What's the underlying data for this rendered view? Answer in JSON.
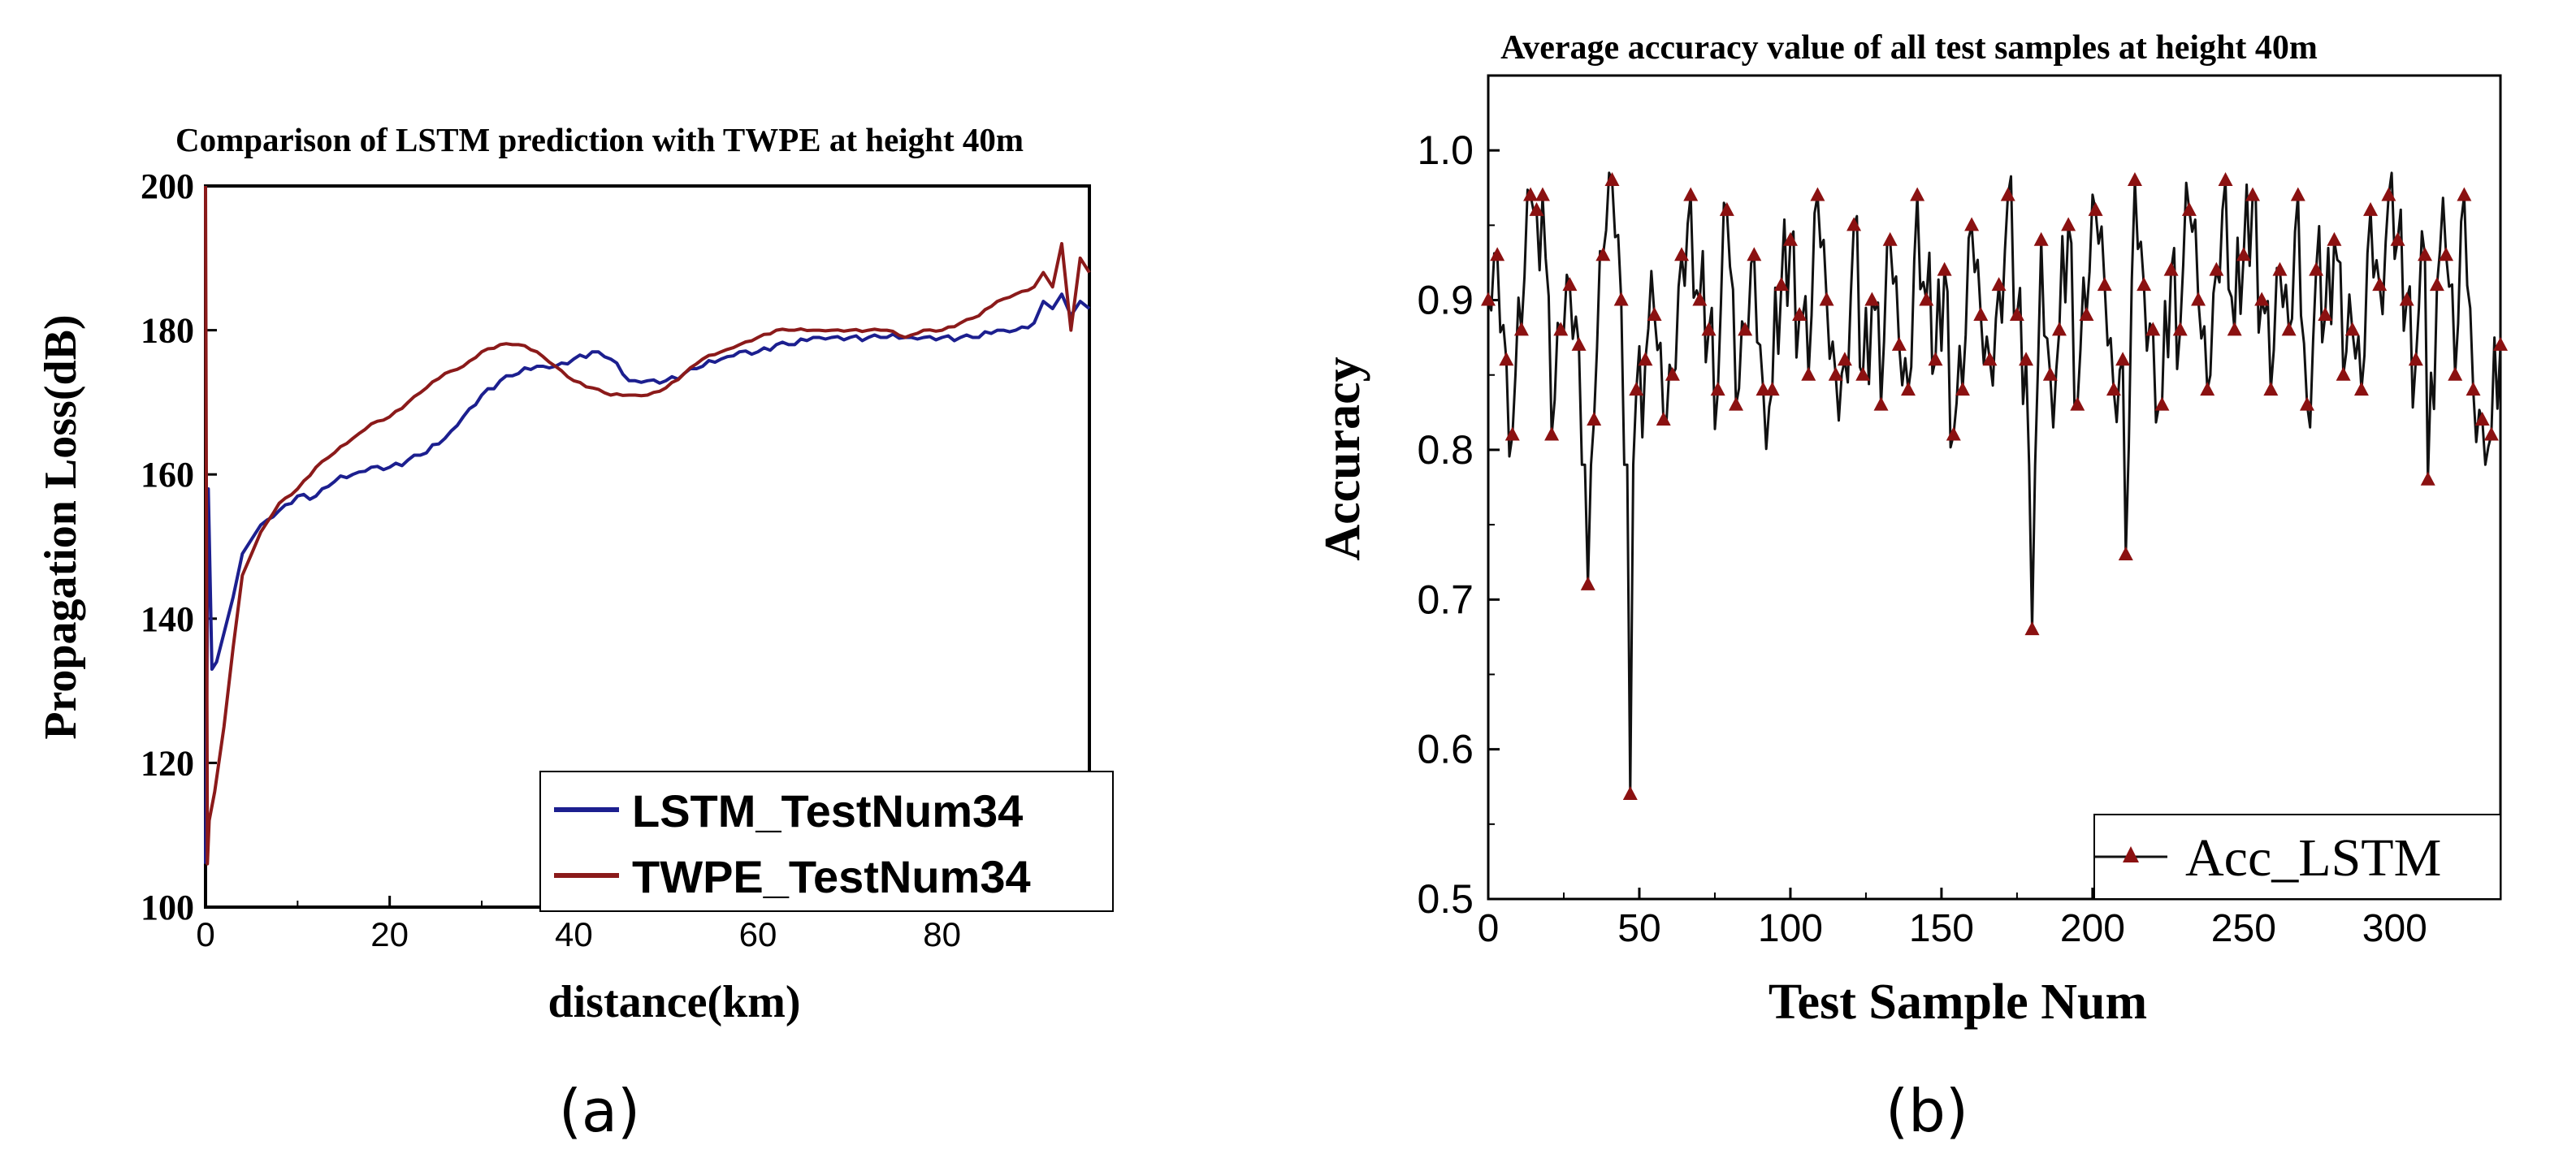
{
  "colors": {
    "lstm": "#1c1f8f",
    "twpe": "#8b1a1a",
    "acc_line": "#111111",
    "acc_marker": "#8b1111",
    "axis": "#000000"
  },
  "chart_data": [
    {
      "id": "a",
      "panel_label": "(a)",
      "type": "line",
      "title": "Comparison of LSTM prediction with TWPE at height 40m",
      "xlabel": "distance(km)",
      "ylabel": "Propagation Loss(dB)",
      "xlim": [
        0,
        96
      ],
      "ylim": [
        100,
        200
      ],
      "xticks": [
        0,
        20,
        40,
        60,
        80
      ],
      "yticks": [
        100,
        120,
        140,
        160,
        180,
        200
      ],
      "legend_position": "bottom-right",
      "series": [
        {
          "name": "LSTM_TestNum34",
          "color_key": "lstm",
          "x": [
            0,
            0.3,
            0.7,
            1.2,
            2,
            3,
            4,
            5,
            6,
            8,
            10,
            12,
            14,
            16,
            18,
            20,
            22,
            24,
            26,
            28,
            30,
            32,
            34,
            36,
            38,
            40,
            42,
            44,
            46,
            48,
            50,
            52,
            54,
            56,
            58,
            60,
            62,
            64,
            66,
            68,
            70,
            72,
            74,
            76,
            78,
            80,
            82,
            84,
            86,
            88,
            90,
            91,
            92,
            93,
            94,
            95,
            96
          ],
          "values": [
            106,
            158,
            133,
            134,
            138,
            143,
            149,
            151,
            153,
            155,
            157,
            157,
            159,
            160,
            161,
            161,
            162,
            163,
            165,
            168,
            171,
            173,
            174,
            175,
            175,
            176,
            177,
            176,
            173,
            173,
            173,
            174,
            175,
            176,
            177,
            177,
            178,
            178,
            179,
            179,
            179,
            179,
            179,
            179,
            179,
            179,
            179,
            179,
            180,
            180,
            181,
            184,
            183,
            185,
            182,
            184,
            183
          ]
        },
        {
          "name": "TWPE_TestNum34",
          "color_key": "twpe",
          "x": [
            0,
            0.2,
            0.4,
            1,
            2,
            3,
            4,
            5,
            6,
            8,
            10,
            12,
            14,
            16,
            18,
            20,
            22,
            24,
            26,
            28,
            30,
            32,
            34,
            36,
            38,
            40,
            42,
            44,
            46,
            48,
            50,
            52,
            54,
            56,
            58,
            60,
            62,
            64,
            66,
            68,
            70,
            72,
            74,
            76,
            78,
            80,
            82,
            84,
            86,
            88,
            90,
            91,
            92,
            93,
            94,
            95,
            96
          ],
          "values": [
            200,
            106,
            112,
            116,
            125,
            136,
            146,
            149,
            152,
            156,
            158,
            161,
            163,
            165,
            167,
            168,
            170,
            172,
            174,
            175,
            177,
            178,
            178,
            177,
            175,
            173,
            172,
            171,
            171,
            171,
            172,
            174,
            176,
            177,
            178,
            179,
            180,
            180,
            180,
            180,
            180,
            180,
            180,
            179,
            180,
            180,
            181,
            182,
            184,
            185,
            186,
            188,
            186,
            192,
            180,
            190,
            188
          ]
        }
      ]
    },
    {
      "id": "b",
      "panel_label": "(b)",
      "type": "line",
      "title": "Average accuracy value of all test samples at height 40m",
      "xlabel": "Test Sample Num",
      "ylabel": "Accuracy",
      "xlim": [
        0,
        335
      ],
      "ylim": [
        0.5,
        1.05
      ],
      "xticks": [
        0,
        50,
        100,
        150,
        200,
        250,
        300
      ],
      "yticks": [
        0.5,
        0.6,
        0.7,
        0.8,
        0.9,
        1.0
      ],
      "ytick_labels": [
        "0.5",
        "0.6",
        "0.7",
        "0.8",
        "0.9",
        "1.0"
      ],
      "legend_position": "bottom-right",
      "series": [
        {
          "name": "Acc_LSTM",
          "color_key": "acc_line",
          "marker": "triangle",
          "marker_color_key": "acc_marker",
          "outliers": [
            [
              33,
              0.71
            ],
            [
              47,
              0.57
            ],
            [
              180,
              0.68
            ],
            [
              211,
              0.73
            ],
            [
              311,
              0.78
            ]
          ],
          "points": [
            [
              0,
              0.9
            ],
            [
              3,
              0.93
            ],
            [
              6,
              0.86
            ],
            [
              8,
              0.81
            ],
            [
              11,
              0.88
            ],
            [
              14,
              0.97
            ],
            [
              16,
              0.96
            ],
            [
              18,
              0.97
            ],
            [
              21,
              0.81
            ],
            [
              24,
              0.88
            ],
            [
              27,
              0.91
            ],
            [
              30,
              0.87
            ],
            [
              33,
              0.71
            ],
            [
              35,
              0.82
            ],
            [
              38,
              0.93
            ],
            [
              41,
              0.98
            ],
            [
              44,
              0.9
            ],
            [
              47,
              0.57
            ],
            [
              49,
              0.84
            ],
            [
              52,
              0.86
            ],
            [
              55,
              0.89
            ],
            [
              58,
              0.82
            ],
            [
              61,
              0.85
            ],
            [
              64,
              0.93
            ],
            [
              67,
              0.97
            ],
            [
              70,
              0.9
            ],
            [
              73,
              0.88
            ],
            [
              76,
              0.84
            ],
            [
              79,
              0.96
            ],
            [
              82,
              0.83
            ],
            [
              85,
              0.88
            ],
            [
              88,
              0.93
            ],
            [
              91,
              0.84
            ],
            [
              94,
              0.84
            ],
            [
              97,
              0.91
            ],
            [
              100,
              0.94
            ],
            [
              103,
              0.89
            ],
            [
              106,
              0.85
            ],
            [
              109,
              0.97
            ],
            [
              112,
              0.9
            ],
            [
              115,
              0.85
            ],
            [
              118,
              0.86
            ],
            [
              121,
              0.95
            ],
            [
              124,
              0.85
            ],
            [
              127,
              0.9
            ],
            [
              130,
              0.83
            ],
            [
              133,
              0.94
            ],
            [
              136,
              0.87
            ],
            [
              139,
              0.84
            ],
            [
              142,
              0.97
            ],
            [
              145,
              0.9
            ],
            [
              148,
              0.86
            ],
            [
              151,
              0.92
            ],
            [
              154,
              0.81
            ],
            [
              157,
              0.84
            ],
            [
              160,
              0.95
            ],
            [
              163,
              0.89
            ],
            [
              166,
              0.86
            ],
            [
              169,
              0.91
            ],
            [
              172,
              0.97
            ],
            [
              175,
              0.89
            ],
            [
              178,
              0.86
            ],
            [
              180,
              0.68
            ],
            [
              183,
              0.94
            ],
            [
              186,
              0.85
            ],
            [
              189,
              0.88
            ],
            [
              192,
              0.95
            ],
            [
              195,
              0.83
            ],
            [
              198,
              0.89
            ],
            [
              201,
              0.96
            ],
            [
              204,
              0.91
            ],
            [
              207,
              0.84
            ],
            [
              210,
              0.86
            ],
            [
              211,
              0.73
            ],
            [
              214,
              0.98
            ],
            [
              217,
              0.91
            ],
            [
              220,
              0.88
            ],
            [
              223,
              0.83
            ],
            [
              226,
              0.92
            ],
            [
              229,
              0.88
            ],
            [
              232,
              0.96
            ],
            [
              235,
              0.9
            ],
            [
              238,
              0.84
            ],
            [
              241,
              0.92
            ],
            [
              244,
              0.98
            ],
            [
              247,
              0.88
            ],
            [
              250,
              0.93
            ],
            [
              253,
              0.97
            ],
            [
              256,
              0.9
            ],
            [
              259,
              0.84
            ],
            [
              262,
              0.92
            ],
            [
              265,
              0.88
            ],
            [
              268,
              0.97
            ],
            [
              271,
              0.83
            ],
            [
              274,
              0.92
            ],
            [
              277,
              0.89
            ],
            [
              280,
              0.94
            ],
            [
              283,
              0.85
            ],
            [
              286,
              0.88
            ],
            [
              289,
              0.84
            ],
            [
              292,
              0.96
            ],
            [
              295,
              0.91
            ],
            [
              298,
              0.97
            ],
            [
              301,
              0.94
            ],
            [
              304,
              0.9
            ],
            [
              307,
              0.86
            ],
            [
              310,
              0.93
            ],
            [
              311,
              0.78
            ],
            [
              314,
              0.91
            ],
            [
              317,
              0.93
            ],
            [
              320,
              0.85
            ],
            [
              323,
              0.97
            ],
            [
              326,
              0.84
            ],
            [
              329,
              0.82
            ],
            [
              332,
              0.81
            ],
            [
              335,
              0.87
            ]
          ]
        }
      ]
    }
  ]
}
